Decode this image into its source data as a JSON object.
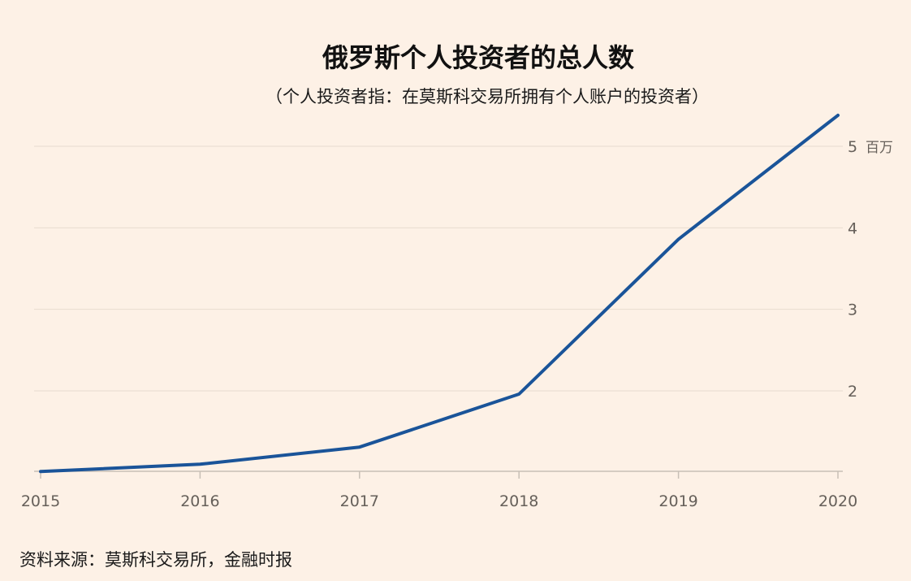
{
  "chart_data": {
    "type": "line",
    "title": "俄罗斯个人投资者的总人数",
    "subtitle": "（个人投资者指：在莫斯科交易所拥有个人账户的投资者）",
    "x": [
      "2015",
      "2016",
      "2017",
      "2018",
      "2019",
      "2020"
    ],
    "series": [
      {
        "values": [
          1.01,
          1.1,
          1.31,
          1.96,
          3.86,
          5.38
        ]
      }
    ],
    "yticks": [
      2,
      3,
      4,
      5
    ],
    "y_unit_label": "百万",
    "ylim": [
      1,
      5.4
    ],
    "grid": true,
    "y_axis_side": "right",
    "source": "资料来源：莫斯科交易所，金融时报",
    "colors": {
      "line": "#1a5499",
      "background": "#fdf1e6"
    }
  }
}
